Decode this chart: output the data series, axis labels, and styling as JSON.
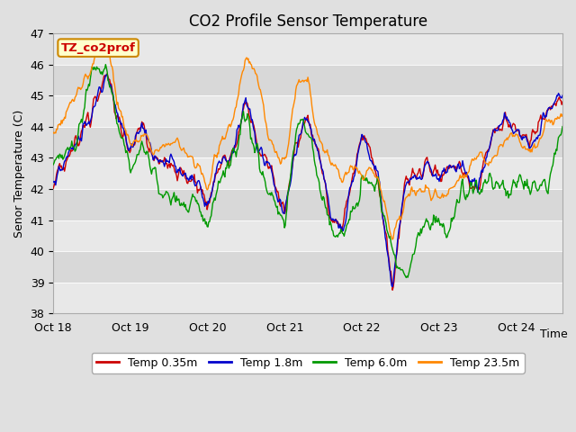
{
  "title": "CO2 Profile Sensor Temperature",
  "ylabel": "Senor Temperature (C)",
  "xlabel": "Time",
  "annotation": "TZ_co2prof",
  "ylim": [
    38.0,
    47.0
  ],
  "yticks": [
    38.0,
    39.0,
    40.0,
    41.0,
    42.0,
    43.0,
    44.0,
    45.0,
    46.0,
    47.0
  ],
  "xtick_labels": [
    "Oct 18",
    "Oct 19",
    "Oct 20",
    "Oct 21",
    "Oct 22",
    "Oct 23",
    "Oct 24"
  ],
  "legend": [
    "Temp 0.35m",
    "Temp 1.8m",
    "Temp 6.0m",
    "Temp 23.5m"
  ],
  "line_colors": [
    "#cc0000",
    "#0000cc",
    "#009900",
    "#ff8800"
  ],
  "line_width": 1.0,
  "bg_color": "#e0e0e0",
  "plot_bg_color": "#e8e8e8",
  "annotation_bg": "#ffffcc",
  "annotation_border": "#cc8800",
  "annotation_text_color": "#cc0000",
  "title_fontsize": 12,
  "label_fontsize": 9,
  "tick_fontsize": 9,
  "legend_fontsize": 9,
  "band_colors": [
    "#e8e8e8",
    "#d8d8d8"
  ]
}
